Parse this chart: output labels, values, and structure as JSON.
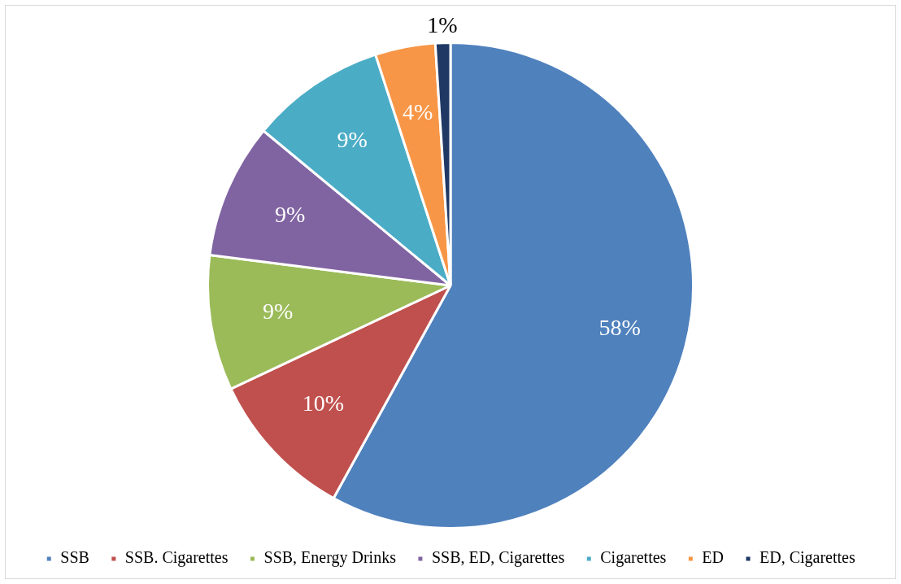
{
  "chart_data": {
    "type": "pie",
    "categories": [
      "SSB",
      "SSB. Cigarettes",
      "SSB, Energy Drinks",
      "SSB, ED, Cigarettes",
      "Cigarettes",
      "ED",
      "ED, Cigarettes"
    ],
    "values": [
      58,
      10,
      9,
      9,
      9,
      4,
      1
    ],
    "colors": [
      "#4f81bd",
      "#c0504d",
      "#9bbb59",
      "#8064a2",
      "#4bacc6",
      "#f79646",
      "#1f3864"
    ],
    "value_labels": [
      "58%",
      "10%",
      "9%",
      "9%",
      "9%",
      "4%",
      "1%"
    ],
    "legend": "bottom"
  }
}
